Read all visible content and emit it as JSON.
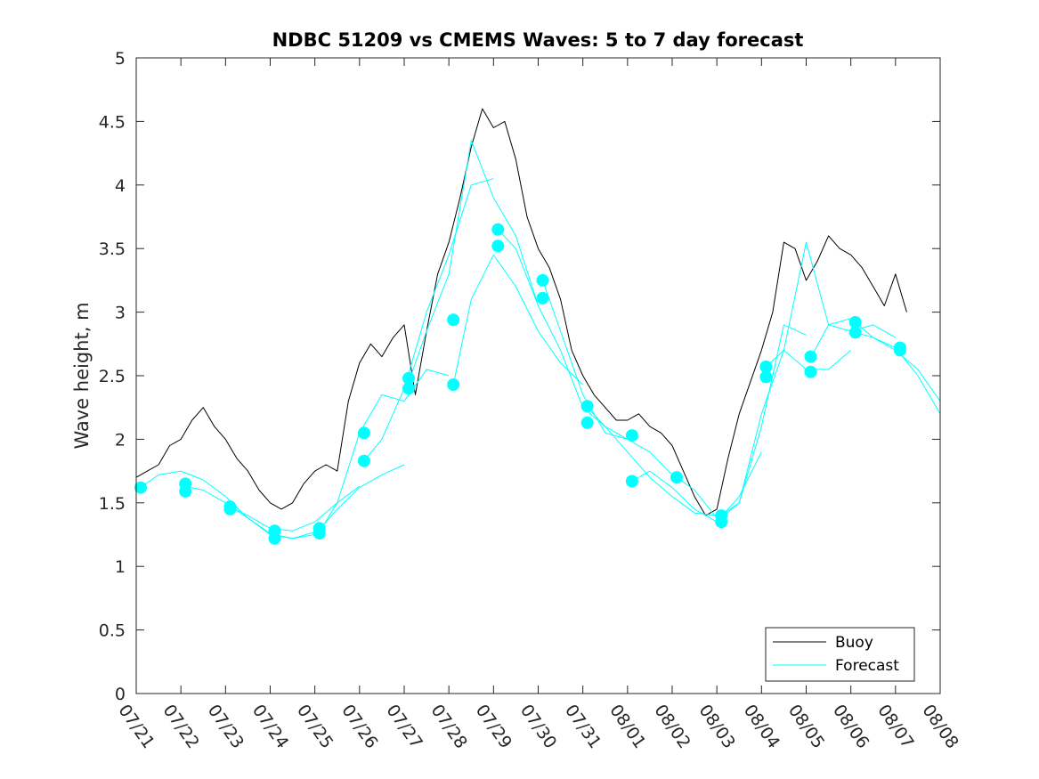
{
  "chart_data": {
    "type": "line",
    "title": "NDBC 51209 vs CMEMS Waves: 5 to 7 day forecast",
    "xlabel": "",
    "ylabel": "Wave height, m",
    "xlim": [
      0,
      18
    ],
    "ylim": [
      0,
      5
    ],
    "x_ticks": [
      0,
      1,
      2,
      3,
      4,
      5,
      6,
      7,
      8,
      9,
      10,
      11,
      12,
      13,
      14,
      15,
      16,
      17,
      18
    ],
    "x_tick_labels": [
      "07/21",
      "07/22",
      "07/23",
      "07/24",
      "07/25",
      "07/26",
      "07/27",
      "07/28",
      "07/29",
      "07/30",
      "07/31",
      "08/01",
      "08/02",
      "08/03",
      "08/04",
      "08/05",
      "08/06",
      "08/07",
      "08/08"
    ],
    "y_ticks": [
      0,
      0.5,
      1,
      1.5,
      2,
      2.5,
      3,
      3.5,
      4,
      4.5,
      5
    ],
    "y_tick_labels": [
      "0",
      "0.5",
      "1",
      "1.5",
      "2",
      "2.5",
      "3",
      "3.5",
      "4",
      "4.5",
      "5"
    ],
    "grid": false,
    "legend": {
      "placement": "bottom-right",
      "entries": [
        "Buoy",
        "Forecast"
      ]
    },
    "colors": {
      "buoy": "#000000",
      "forecast": "#00ffff"
    },
    "series": [
      {
        "name": "Buoy",
        "x": [
          0,
          0.25,
          0.5,
          0.75,
          1,
          1.25,
          1.5,
          1.75,
          2,
          2.25,
          2.5,
          2.75,
          3,
          3.25,
          3.5,
          3.75,
          4,
          4.25,
          4.5,
          4.75,
          5,
          5.25,
          5.5,
          5.75,
          6,
          6.25,
          6.5,
          6.75,
          7,
          7.25,
          7.5,
          7.75,
          8,
          8.25,
          8.5,
          8.75,
          9,
          9.25,
          9.5,
          9.75,
          10,
          10.25,
          10.5,
          10.75,
          11,
          11.25,
          11.5,
          11.75,
          12,
          12.25,
          12.5,
          12.75,
          13,
          13.25,
          13.5,
          13.75,
          14,
          14.25,
          14.5,
          14.75,
          15,
          15.25,
          15.5,
          15.75,
          16,
          16.25,
          16.5,
          16.75,
          17,
          17.25
        ],
        "y": [
          1.7,
          1.75,
          1.8,
          1.95,
          2.0,
          2.15,
          2.25,
          2.1,
          2.0,
          1.85,
          1.75,
          1.6,
          1.5,
          1.45,
          1.5,
          1.65,
          1.75,
          1.8,
          1.75,
          2.3,
          2.6,
          2.75,
          2.65,
          2.8,
          2.9,
          2.35,
          2.85,
          3.3,
          3.55,
          3.9,
          4.3,
          4.6,
          4.45,
          4.5,
          4.2,
          3.75,
          3.5,
          3.35,
          3.1,
          2.7,
          2.5,
          2.35,
          2.25,
          2.15,
          2.15,
          2.2,
          2.1,
          2.05,
          1.95,
          1.75,
          1.55,
          1.4,
          1.45,
          1.85,
          2.2,
          2.45,
          2.7,
          3.0,
          3.55,
          3.5,
          3.25,
          3.4,
          3.6,
          3.5,
          3.45,
          3.35,
          3.2,
          3.05,
          3.3,
          3.0
        ]
      },
      {
        "name": "",
        "x": [
          0.1,
          0.5,
          1,
          1.5,
          2,
          2.5,
          3
        ],
        "y": [
          1.62,
          1.72,
          1.75,
          1.68,
          1.55,
          1.38,
          1.26
        ]
      },
      {
        "name": "",
        "x": [
          1.1,
          1.5,
          2,
          2.5,
          3,
          3.5,
          4
        ],
        "y": [
          1.63,
          1.6,
          1.5,
          1.38,
          1.25,
          1.22,
          1.27
        ]
      },
      {
        "name": "",
        "x": [
          2.1,
          2.5,
          3,
          3.5,
          4,
          4.5,
          5
        ],
        "y": [
          1.47,
          1.4,
          1.3,
          1.28,
          1.35,
          1.5,
          1.63
        ]
      },
      {
        "name": "",
        "x": [
          3.1,
          3.5,
          4,
          4.5,
          5,
          5.5,
          6
        ],
        "y": [
          1.25,
          1.22,
          1.25,
          1.45,
          1.62,
          1.72,
          1.8
        ]
      },
      {
        "name": "",
        "x": [
          4.1,
          4.5,
          5,
          5.5,
          6,
          6.5,
          7
        ],
        "y": [
          1.27,
          1.5,
          2.05,
          2.35,
          2.3,
          2.55,
          2.5
        ]
      },
      {
        "name": "",
        "x": [
          5.1,
          5.5,
          6,
          6.5,
          7,
          7.5,
          8
        ],
        "y": [
          1.83,
          2.0,
          2.4,
          3.0,
          3.45,
          4.0,
          4.05
        ]
      },
      {
        "name": "",
        "x": [
          6.1,
          6.5,
          7,
          7.5,
          8,
          8.5,
          9
        ],
        "y": [
          2.45,
          2.85,
          3.3,
          4.35,
          3.9,
          3.6,
          3.05
        ]
      },
      {
        "name": "",
        "x": [
          7.1,
          7.5,
          8,
          8.5,
          9,
          9.5,
          10
        ],
        "y": [
          2.43,
          3.1,
          3.45,
          3.2,
          2.85,
          2.6,
          2.43
        ]
      },
      {
        "name": "",
        "x": [
          8.1,
          8.5,
          9,
          9.5,
          10,
          10.5,
          11
        ],
        "y": [
          3.65,
          3.5,
          3.05,
          2.7,
          2.25,
          2.1,
          2.0
        ]
      },
      {
        "name": "",
        "x": [
          9.1,
          9.5,
          10,
          10.5,
          11,
          11.5,
          12
        ],
        "y": [
          3.25,
          2.85,
          2.35,
          2.05,
          2.0,
          1.9,
          1.72
        ]
      },
      {
        "name": "",
        "x": [
          10.1,
          10.5,
          11,
          11.5,
          12,
          12.5,
          13
        ],
        "y": [
          2.25,
          2.1,
          1.9,
          1.7,
          1.55,
          1.42,
          1.4
        ]
      },
      {
        "name": "",
        "x": [
          11.1,
          11.5,
          12,
          12.5,
          13,
          13.5,
          14
        ],
        "y": [
          1.67,
          1.75,
          1.62,
          1.45,
          1.35,
          1.55,
          1.9
        ]
      },
      {
        "name": "",
        "x": [
          12.1,
          12.5,
          13,
          13.5,
          14,
          14.5,
          15
        ],
        "y": [
          1.7,
          1.6,
          1.38,
          1.5,
          2.1,
          2.9,
          2.82
        ]
      },
      {
        "name": "",
        "x": [
          13.1,
          13.5,
          14,
          14.5,
          15,
          15.5,
          16
        ],
        "y": [
          1.38,
          1.5,
          2.2,
          2.7,
          2.55,
          2.55,
          2.7
        ]
      },
      {
        "name": "",
        "x": [
          14.1,
          14.5,
          15,
          15.5,
          16,
          16.5,
          17
        ],
        "y": [
          2.57,
          2.7,
          3.55,
          2.9,
          2.85,
          2.9,
          2.8
        ]
      },
      {
        "name": "",
        "x": [
          15.1,
          15.5,
          16,
          16.5,
          17,
          17.5,
          18
        ],
        "y": [
          2.64,
          2.9,
          2.95,
          2.8,
          2.7,
          2.55,
          2.3
        ]
      },
      {
        "name": "",
        "x": [
          16.1,
          16.5,
          17,
          17.5,
          18
        ],
        "y": [
          2.84,
          2.8,
          2.72,
          2.5,
          2.2
        ]
      }
    ],
    "forecast_start_markers": {
      "x": [
        0.1,
        1.1,
        2.1,
        3.1,
        4.1,
        5.1,
        6.1,
        7.1,
        8.1,
        9.1,
        10.1,
        11.1,
        12.1,
        13.1,
        14.1,
        15.1,
        16.1,
        17.1,
        1.1,
        2.1,
        3.1,
        4.1,
        5.1,
        6.1,
        7.1,
        8.1,
        9.1,
        10.1,
        11.1,
        13.1,
        14.1,
        15.1,
        16.1,
        17.1
      ],
      "y": [
        1.62,
        1.65,
        1.47,
        1.28,
        1.3,
        2.05,
        2.48,
        2.94,
        3.65,
        3.25,
        2.26,
        2.03,
        1.7,
        1.4,
        2.57,
        2.65,
        2.92,
        2.72,
        1.59,
        1.45,
        1.22,
        1.26,
        1.83,
        2.4,
        2.43,
        3.52,
        3.11,
        2.13,
        1.67,
        1.35,
        2.49,
        2.53,
        2.84,
        2.7
      ]
    }
  }
}
